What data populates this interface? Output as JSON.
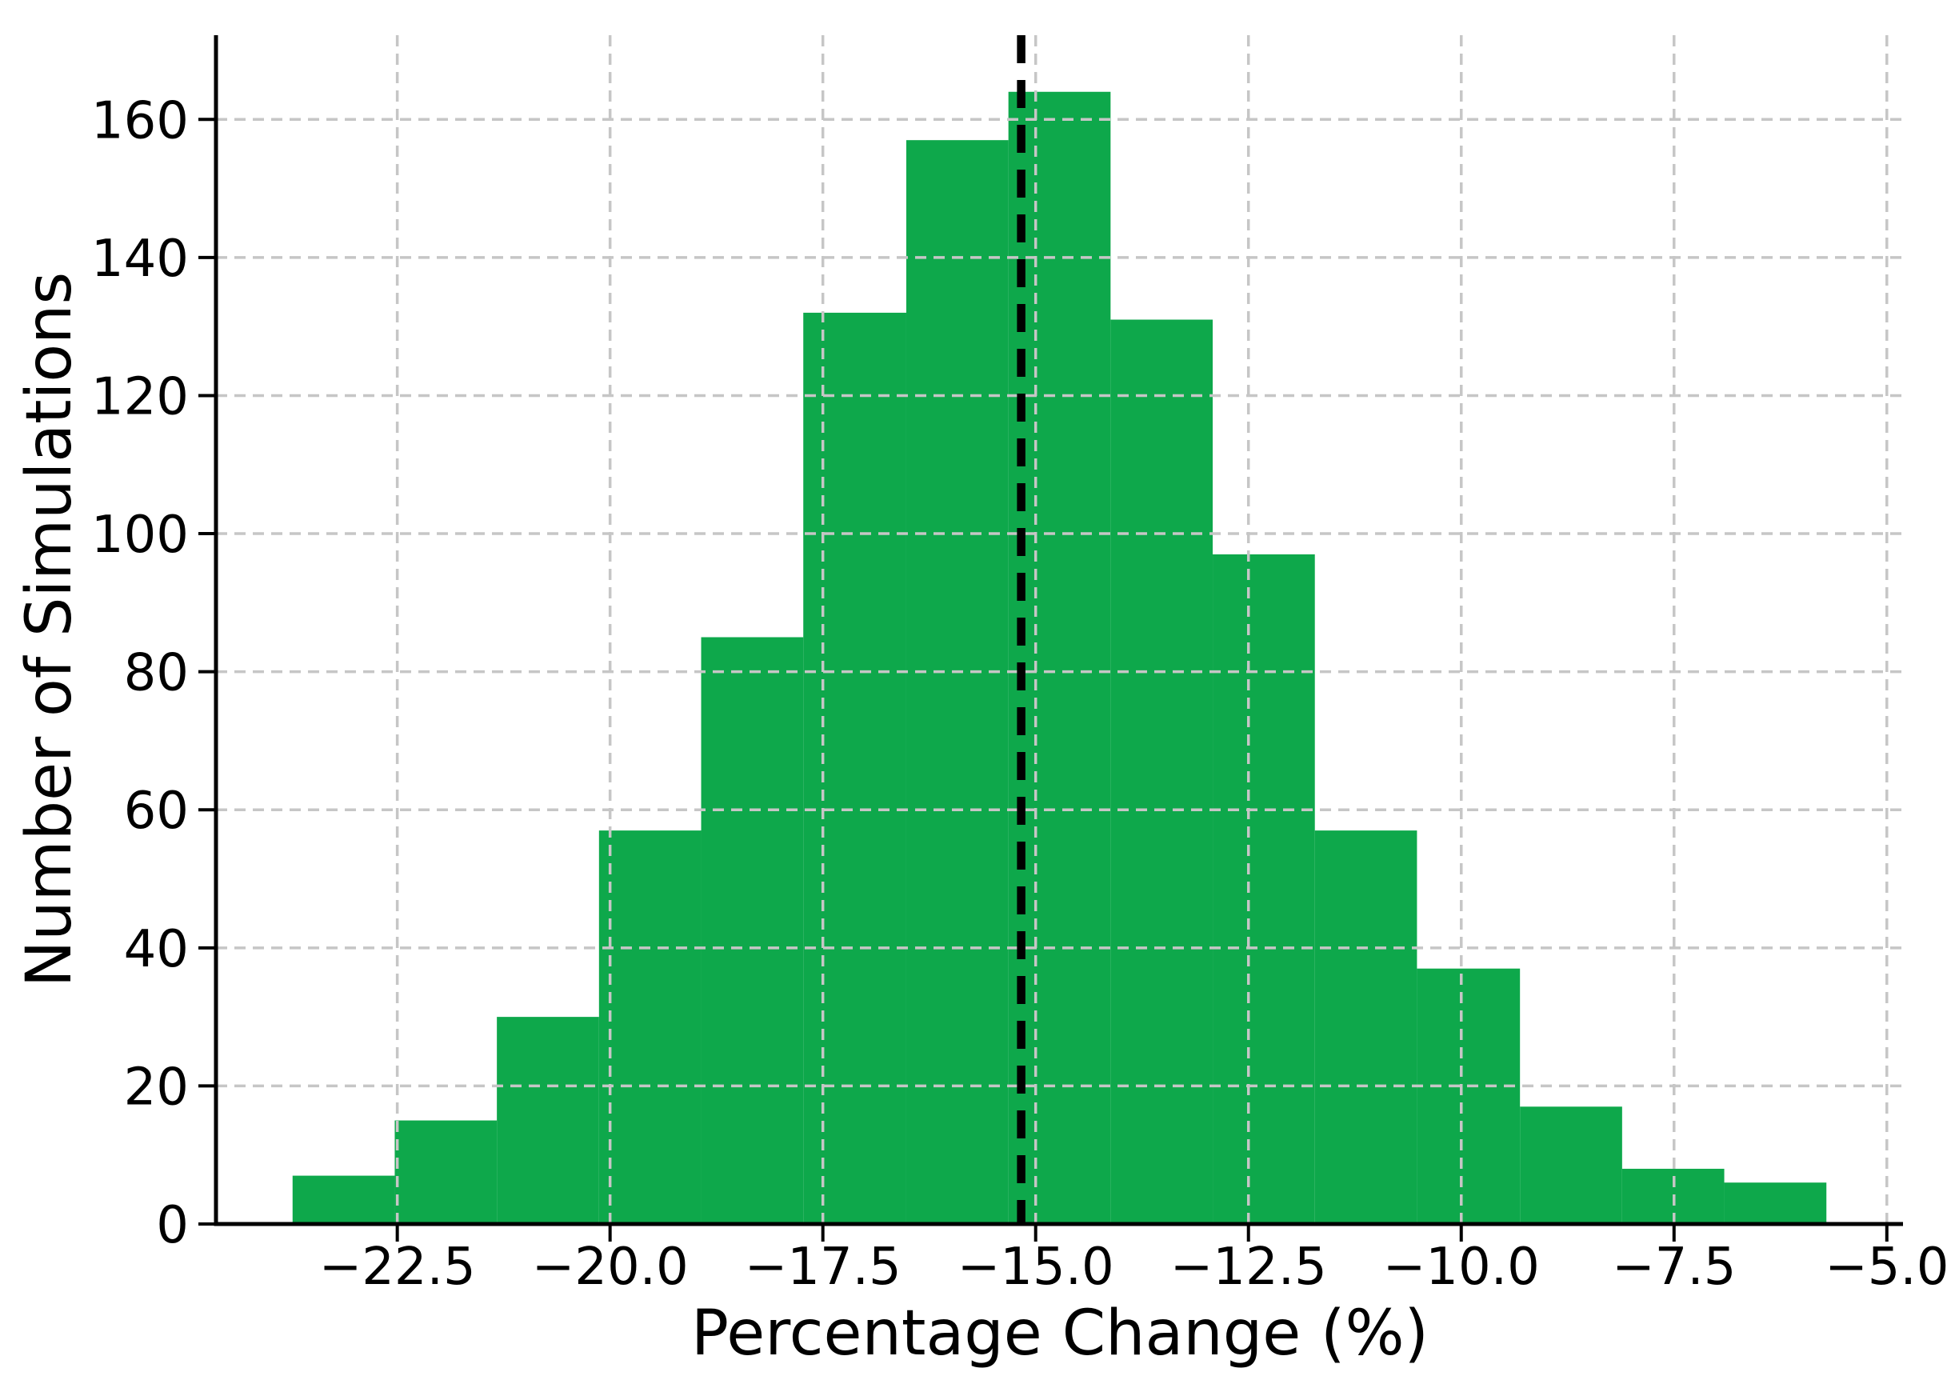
{
  "chart_data": {
    "type": "bar",
    "subtype": "histogram",
    "title": "",
    "xlabel": "Percentage Change (%)",
    "ylabel": "Number of Simulations",
    "bin_edges": [
      -23.73,
      -22.53,
      -21.33,
      -20.13,
      -18.93,
      -17.73,
      -16.52,
      -15.32,
      -14.12,
      -12.92,
      -11.72,
      -10.52,
      -9.31,
      -8.11,
      -6.91,
      -5.71
    ],
    "counts": [
      7,
      15,
      30,
      57,
      85,
      132,
      157,
      164,
      131,
      97,
      57,
      37,
      17,
      8,
      6
    ],
    "mean_line": {
      "x": -15.17,
      "color": "#000000",
      "style": "dashed"
    },
    "xticks": [
      -22.5,
      -20.0,
      -17.5,
      -15.0,
      -12.5,
      -10.0,
      -7.5,
      -5.0
    ],
    "xtick_labels": [
      "−22.5",
      "−20.0",
      "−17.5",
      "−15.0",
      "−12.5",
      "−10.0",
      "−7.5",
      "−5.0"
    ],
    "yticks": [
      0,
      20,
      40,
      60,
      80,
      100,
      120,
      140,
      160
    ],
    "ytick_labels": [
      "0",
      "20",
      "40",
      "60",
      "80",
      "100",
      "120",
      "140",
      "160"
    ],
    "xlim": [
      -24.63,
      -4.81
    ],
    "ylim": [
      0,
      172.2
    ],
    "grid": true,
    "legend": false,
    "bar_color": "#0ea84b",
    "grid_color": "#c6c6c6",
    "axis_color": "#000000"
  }
}
